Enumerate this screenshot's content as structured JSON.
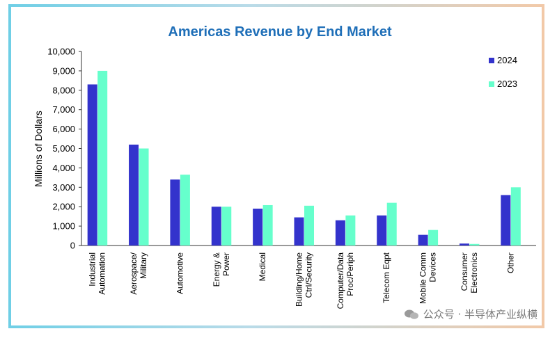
{
  "chart_data": {
    "type": "bar",
    "title": "Americas Revenue by End Market",
    "ylabel": "Millions of Dollars",
    "xlabel": "",
    "ylim": [
      0,
      10000
    ],
    "yticks": [
      "0",
      "1,000",
      "2,000",
      "3,000",
      "4,000",
      "5,000",
      "6,000",
      "7,000",
      "8,000",
      "9,000",
      "10,000"
    ],
    "ytick_values": [
      0,
      1000,
      2000,
      3000,
      4000,
      5000,
      6000,
      7000,
      8000,
      9000,
      10000
    ],
    "categories": [
      [
        "Industrial",
        "Automation"
      ],
      [
        "Aerospace/",
        "Military"
      ],
      [
        "Automotive"
      ],
      [
        "Energy &",
        "Power"
      ],
      [
        "Medical"
      ],
      [
        "Building/Home",
        "Ctrl/Security"
      ],
      [
        "Computer/Data",
        "Proc/Periph"
      ],
      [
        "Telecom Eqpt"
      ],
      [
        "Mobile Comm",
        "Devices"
      ],
      [
        "Consumer",
        "Electronics"
      ],
      [
        "Other"
      ]
    ],
    "series": [
      {
        "name": "2024",
        "color": "#3333cc",
        "values": [
          8300,
          5200,
          3400,
          2000,
          1900,
          1450,
          1300,
          1550,
          550,
          100,
          2600
        ]
      },
      {
        "name": "2023",
        "color": "#66ffcc",
        "values": [
          9000,
          5000,
          3650,
          2000,
          2080,
          2050,
          1550,
          2200,
          800,
          80,
          3000
        ]
      }
    ],
    "legend_position": "top-right",
    "grid": false
  },
  "watermark": {
    "text": "公众号 · 半导体产业纵横",
    "icon": "wechat-icon"
  }
}
